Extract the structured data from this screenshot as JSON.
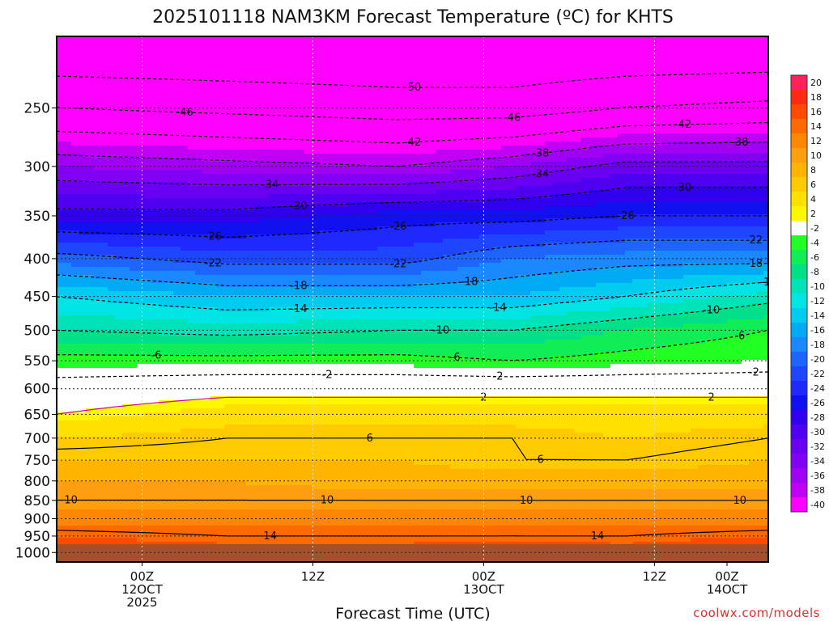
{
  "chart_data": {
    "type": "heatmap",
    "title": "2025101118 NAM3KM Forecast Temperature (ºC) for KHTS",
    "xlabel": "Forecast Time (UTC)",
    "ylabel": "",
    "y_axis": {
      "unit": "hPa",
      "reversed": true,
      "log_scale": true,
      "ticks": [
        250,
        300,
        350,
        400,
        450,
        500,
        550,
        600,
        650,
        700,
        750,
        800,
        850,
        900,
        950,
        1000
      ],
      "range": [
        200,
        1030
      ]
    },
    "x_axis": {
      "unit": "hours from 00Z 12 Oct",
      "range": [
        -6,
        44
      ],
      "ticks": [
        {
          "hour": 0,
          "line1": "00Z",
          "line2": "12OCT",
          "line3": "2025"
        },
        {
          "hour": 12,
          "line1": "12Z",
          "line2": "",
          "line3": ""
        },
        {
          "hour": 24,
          "line1": "00Z",
          "line2": "13OCT",
          "line3": ""
        },
        {
          "hour": 36,
          "line1": "12Z",
          "line2": "",
          "line3": ""
        },
        {
          "hour": 48,
          "line1": "00Z",
          "line2": "14OCT",
          "line3": ""
        }
      ]
    },
    "colorbar": {
      "labels": [
        "20",
        "18",
        "16",
        "14",
        "12",
        "10",
        "8",
        "6",
        "4",
        "2",
        "-2",
        "-4",
        "-6",
        "-8",
        "-10",
        "-12",
        "-14",
        "-16",
        "-18",
        "-20",
        "-22",
        "-24",
        "-26",
        "-28",
        "-30",
        "-32",
        "-34",
        "-36",
        "-38",
        "-40"
      ],
      "colors": [
        "#ff1f5a",
        "#ff2a10",
        "#ff4a00",
        "#ff6a00",
        "#ff8600",
        "#ff9f10",
        "#ffb400",
        "#ffca00",
        "#ffe000",
        "#fff700",
        "#ffffff",
        "#22ff22",
        "#11ee55",
        "#00e088",
        "#00e2b8",
        "#00e4e4",
        "#00ccf0",
        "#00aaf4",
        "#1a88ff",
        "#1e64ff",
        "#1e46ff",
        "#1e28ff",
        "#1010f0",
        "#3000ee",
        "#5000f0",
        "#6a00f2",
        "#8200f4",
        "#a000f4",
        "#c000f4",
        "#ff00ff"
      ]
    },
    "series": [
      {
        "name": "-50",
        "contour_value": -50,
        "label_positions_hours": [
          19
        ]
      },
      {
        "name": "-46",
        "contour_value": -46,
        "label_positions_hours": [
          3,
          26,
          45
        ]
      },
      {
        "name": "-42",
        "contour_value": -42,
        "label_positions_hours": [
          19,
          38
        ]
      },
      {
        "name": "-38",
        "contour_value": -38,
        "label_positions_hours": [
          28,
          42
        ]
      },
      {
        "name": "-34",
        "contour_value": -34,
        "label_positions_hours": [
          9,
          28,
          47
        ]
      },
      {
        "name": "-30",
        "contour_value": -30,
        "label_positions_hours": [
          11,
          38
        ]
      },
      {
        "name": "-26",
        "contour_value": -26,
        "label_positions_hours": [
          5,
          18,
          34
        ]
      },
      {
        "name": "-22",
        "contour_value": -22,
        "label_positions_hours": [
          5,
          18,
          43
        ]
      },
      {
        "name": "-18",
        "contour_value": -18,
        "label_positions_hours": [
          11,
          23,
          43
        ]
      },
      {
        "name": "-14",
        "contour_value": -14,
        "label_positions_hours": [
          11,
          25,
          44
        ]
      },
      {
        "name": "-10",
        "contour_value": -10,
        "label_positions_hours": [
          21,
          40
        ]
      },
      {
        "name": "-6",
        "contour_value": -6,
        "label_positions_hours": [
          1,
          22,
          42
        ]
      },
      {
        "name": "-2",
        "contour_value": -2,
        "label_positions_hours": [
          13,
          25,
          43
        ]
      },
      {
        "name": "2",
        "contour_value": 2,
        "label_positions_hours": [
          24,
          40
        ]
      },
      {
        "name": "6",
        "contour_value": 6,
        "label_positions_hours": [
          16,
          28,
          45
        ]
      },
      {
        "name": "10",
        "contour_value": 10,
        "label_positions_hours": [
          -5,
          13,
          27,
          42
        ]
      },
      {
        "name": "14",
        "contour_value": 14,
        "label_positions_hours": [
          9,
          32
        ]
      }
    ],
    "profiles": [
      {
        "hour": -6,
        "temps": [
          [
            200,
            -55
          ],
          [
            250,
            -46
          ],
          [
            300,
            -36
          ],
          [
            350,
            -29
          ],
          [
            400,
            -21
          ],
          [
            450,
            -14
          ],
          [
            500,
            -10
          ],
          [
            550,
            -5
          ],
          [
            600,
            0
          ],
          [
            650,
            2
          ],
          [
            700,
            5
          ],
          [
            750,
            7
          ],
          [
            800,
            9
          ],
          [
            850,
            10
          ],
          [
            900,
            12
          ],
          [
            950,
            15
          ],
          [
            1000,
            17
          ]
        ]
      },
      {
        "hour": 6,
        "temps": [
          [
            200,
            -55
          ],
          [
            250,
            -47
          ],
          [
            300,
            -37
          ],
          [
            350,
            -29
          ],
          [
            400,
            -23
          ],
          [
            450,
            -16
          ],
          [
            500,
            -11
          ],
          [
            550,
            -5
          ],
          [
            600,
            1
          ],
          [
            650,
            4
          ],
          [
            700,
            6
          ],
          [
            750,
            7
          ],
          [
            800,
            9
          ],
          [
            850,
            10
          ],
          [
            900,
            12
          ],
          [
            950,
            14
          ],
          [
            1000,
            16
          ]
        ]
      },
      {
        "hour": 18,
        "temps": [
          [
            200,
            -55
          ],
          [
            250,
            -48
          ],
          [
            300,
            -38
          ],
          [
            350,
            -27
          ],
          [
            400,
            -23
          ],
          [
            450,
            -16
          ],
          [
            500,
            -10
          ],
          [
            550,
            -5
          ],
          [
            600,
            1
          ],
          [
            650,
            4
          ],
          [
            700,
            6
          ],
          [
            750,
            7
          ],
          [
            800,
            8
          ],
          [
            850,
            10
          ],
          [
            900,
            12
          ],
          [
            950,
            14
          ],
          [
            1000,
            16
          ]
        ]
      },
      {
        "hour": 26,
        "temps": [
          [
            200,
            -55
          ],
          [
            250,
            -48
          ],
          [
            300,
            -36
          ],
          [
            350,
            -27
          ],
          [
            400,
            -20
          ],
          [
            450,
            -16
          ],
          [
            500,
            -10
          ],
          [
            550,
            -6
          ],
          [
            600,
            1
          ],
          [
            650,
            4
          ],
          [
            700,
            6
          ],
          [
            750,
            6
          ],
          [
            800,
            8
          ],
          [
            850,
            10
          ],
          [
            900,
            12
          ],
          [
            950,
            14
          ],
          [
            1000,
            17
          ]
        ]
      },
      {
        "hour": 34,
        "temps": [
          [
            200,
            -55
          ],
          [
            250,
            -46
          ],
          [
            300,
            -33
          ],
          [
            350,
            -26
          ],
          [
            400,
            -19
          ],
          [
            450,
            -14
          ],
          [
            500,
            -8
          ],
          [
            550,
            -5
          ],
          [
            600,
            1
          ],
          [
            650,
            4
          ],
          [
            700,
            5
          ],
          [
            750,
            6
          ],
          [
            800,
            8
          ],
          [
            850,
            10
          ],
          [
            900,
            12
          ],
          [
            950,
            14
          ],
          [
            1000,
            16
          ]
        ]
      },
      {
        "hour": 44,
        "temps": [
          [
            200,
            -55
          ],
          [
            250,
            -45
          ],
          [
            300,
            -33
          ],
          [
            350,
            -26
          ],
          [
            400,
            -19
          ],
          [
            450,
            -11
          ],
          [
            500,
            -6
          ],
          [
            550,
            -4
          ],
          [
            600,
            1
          ],
          [
            650,
            4
          ],
          [
            700,
            6
          ],
          [
            750,
            7
          ],
          [
            800,
            8
          ],
          [
            850,
            10
          ],
          [
            900,
            12
          ],
          [
            950,
            15
          ],
          [
            1000,
            18
          ]
        ]
      }
    ]
  },
  "source_label": "coolwx.com/models"
}
